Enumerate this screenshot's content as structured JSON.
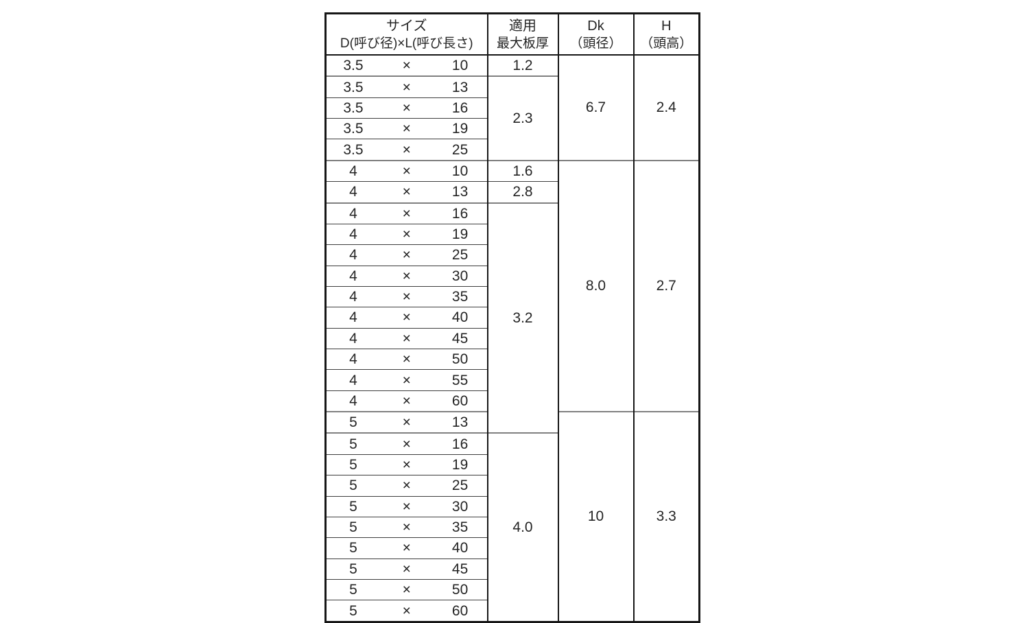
{
  "table": {
    "headers": {
      "size": {
        "line1": "サイズ",
        "line2": "D(呼び径)×L(呼び長さ)"
      },
      "thickness": {
        "line1": "適用",
        "line2": "最大板厚"
      },
      "dk": {
        "line1": "Dk",
        "line2": "（頭径）"
      },
      "h": {
        "line1": "H",
        "line2": "（頭高）"
      }
    },
    "multiply_sign": "×",
    "rows": [
      {
        "d": "3.5",
        "l": "10",
        "thickness": "1.2",
        "thickness_span": 1,
        "dk": "6.7",
        "dk_span": 5,
        "h": "2.4",
        "h_span": 5
      },
      {
        "d": "3.5",
        "l": "13",
        "thickness": "2.3",
        "thickness_span": 4,
        "group_start": true
      },
      {
        "d": "3.5",
        "l": "16"
      },
      {
        "d": "3.5",
        "l": "19"
      },
      {
        "d": "3.5",
        "l": "25"
      },
      {
        "d": "4",
        "l": "10",
        "thickness": "1.6",
        "thickness_span": 1,
        "dk": "8.0",
        "dk_span": 12,
        "h": "2.7",
        "h_span": 12,
        "group_start": true
      },
      {
        "d": "4",
        "l": "13",
        "thickness": "2.8",
        "thickness_span": 1
      },
      {
        "d": "4",
        "l": "16",
        "thickness": "3.2",
        "thickness_span": 11,
        "group_start": true
      },
      {
        "d": "4",
        "l": "19"
      },
      {
        "d": "4",
        "l": "25"
      },
      {
        "d": "4",
        "l": "30"
      },
      {
        "d": "4",
        "l": "35"
      },
      {
        "d": "4",
        "l": "40"
      },
      {
        "d": "4",
        "l": "45"
      },
      {
        "d": "4",
        "l": "50"
      },
      {
        "d": "4",
        "l": "55"
      },
      {
        "d": "4",
        "l": "60"
      },
      {
        "d": "5",
        "l": "13",
        "dk": "10",
        "dk_span": 10,
        "h": "3.3",
        "h_span": 10,
        "group_start": true
      },
      {
        "d": "5",
        "l": "16",
        "thickness": "4.0",
        "thickness_span": 9,
        "group_start": true
      },
      {
        "d": "5",
        "l": "19"
      },
      {
        "d": "5",
        "l": "25"
      },
      {
        "d": "5",
        "l": "30"
      },
      {
        "d": "5",
        "l": "35"
      },
      {
        "d": "5",
        "l": "40"
      },
      {
        "d": "5",
        "l": "45"
      },
      {
        "d": "5",
        "l": "50"
      },
      {
        "d": "5",
        "l": "60"
      }
    ]
  },
  "colors": {
    "outer_border": "#161616",
    "row_line": "#3d3d3d",
    "group_line": "#7f7f7f",
    "text": "#242424",
    "background": "#ffffff"
  }
}
